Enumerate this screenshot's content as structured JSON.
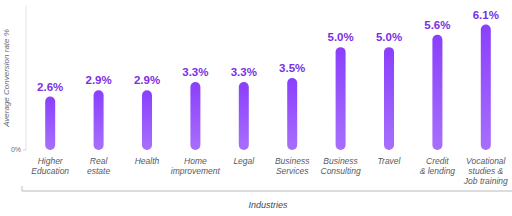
{
  "chart_data": {
    "type": "bar",
    "x_label": "Industries",
    "y_label": "Average Conversion rate %",
    "categories": [
      "Higher\nEducation",
      "Real\nestate",
      "Health",
      "Home\nimprovement",
      "Legal",
      "Business\nServices",
      "Business\nConsulting",
      "Travel",
      "Credit\n& lending",
      "Vocational\nstudies &\nJob training"
    ],
    "values": [
      2.6,
      2.9,
      2.9,
      3.3,
      3.3,
      3.5,
      5.0,
      5.0,
      5.6,
      6.1
    ],
    "value_labels": [
      "2.6%",
      "2.9%",
      "2.9%",
      "3.3%",
      "3.3%",
      "3.5%",
      "5.0%",
      "5.0%",
      "5.6%",
      "6.1%"
    ],
    "color": "#8a3ffc",
    "ylim": [
      0,
      7
    ],
    "yticks": [
      {
        "value": 0,
        "label": "0%"
      }
    ],
    "data_labels": true,
    "grid": false
  }
}
